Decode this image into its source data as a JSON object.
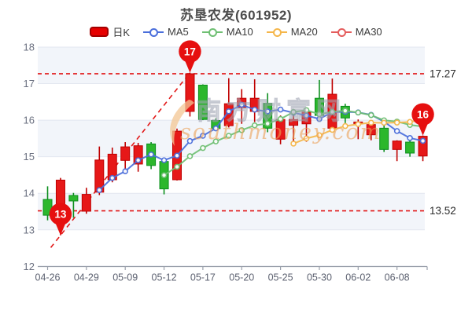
{
  "title": "苏垦农发(601952)",
  "legend": [
    {
      "label": "日K",
      "type": "candle",
      "color": "#e60000",
      "border": "#a30000"
    },
    {
      "label": "MA5",
      "type": "line",
      "color": "#4a6edb"
    },
    {
      "label": "MA10",
      "type": "line",
      "color": "#6fbf73"
    },
    {
      "label": "MA20",
      "type": "line",
      "color": "#f5b64a"
    },
    {
      "label": "MA30",
      "type": "line",
      "color": "#e45c5c"
    }
  ],
  "colors": {
    "up_fill": "#e61818",
    "up_border": "#bf0000",
    "down_fill": "#2cb72c",
    "down_border": "#0c8f1e",
    "ref_line": "#e21a1a",
    "marker_fill": "#e60f0f",
    "grid": "#e3e7f0",
    "band": "#f2f5fa",
    "axis": "#9aa0ab",
    "tick_text": "#5c6170",
    "ref_text": "#2b2b2b"
  },
  "chart_data": {
    "type": "candlestick",
    "title": "苏垦农发(601952)",
    "ylim": [
      12,
      18
    ],
    "y_ticks": [
      12,
      13,
      14,
      15,
      16,
      17,
      18
    ],
    "x_ticks": [
      {
        "label": "04-26",
        "candle": 0
      },
      {
        "label": "04-29",
        "candle": 3
      },
      {
        "label": "05-09",
        "candle": 6
      },
      {
        "label": "05-12",
        "candle": 9
      },
      {
        "label": "05-17",
        "candle": 12
      },
      {
        "label": "05-20",
        "candle": 15
      },
      {
        "label": "05-25",
        "candle": 18
      },
      {
        "label": "05-30",
        "candle": 21
      },
      {
        "label": "06-02",
        "candle": 24
      },
      {
        "label": "06-08",
        "candle": 27
      }
    ],
    "candles": [
      {
        "date": "04-26",
        "open": 13.83,
        "high": 14.19,
        "low": 13.26,
        "close": 13.4
      },
      {
        "date": "04-27",
        "open": 13.45,
        "high": 14.42,
        "low": 12.85,
        "close": 14.36
      },
      {
        "date": "04-28",
        "open": 13.94,
        "high": 14.01,
        "low": 13.33,
        "close": 13.79
      },
      {
        "date": "04-29",
        "open": 13.51,
        "high": 14.15,
        "low": 13.44,
        "close": 13.97
      },
      {
        "date": "05-05",
        "open": 14.03,
        "high": 15.28,
        "low": 13.95,
        "close": 14.91
      },
      {
        "date": "05-06",
        "open": 14.37,
        "high": 15.25,
        "low": 14.3,
        "close": 15.07
      },
      {
        "date": "05-09",
        "open": 14.9,
        "high": 15.4,
        "low": 14.55,
        "close": 15.27
      },
      {
        "date": "05-10",
        "open": 14.8,
        "high": 15.38,
        "low": 14.59,
        "close": 15.3
      },
      {
        "date": "05-11",
        "open": 15.35,
        "high": 15.4,
        "low": 14.66,
        "close": 14.76
      },
      {
        "date": "05-12",
        "open": 14.87,
        "high": 14.95,
        "low": 13.97,
        "close": 14.12
      },
      {
        "date": "05-13",
        "open": 14.37,
        "high": 15.77,
        "low": 14.35,
        "close": 15.7
      },
      {
        "date": "05-16",
        "open": 16.24,
        "high": 17.3,
        "low": 16.1,
        "close": 17.27
      },
      {
        "date": "05-17",
        "open": 16.96,
        "high": 16.98,
        "low": 16.0,
        "close": 16.02
      },
      {
        "date": "05-18",
        "open": 15.99,
        "high": 16.05,
        "low": 15.7,
        "close": 15.77
      },
      {
        "date": "05-19",
        "open": 15.85,
        "high": 17.15,
        "low": 15.8,
        "close": 16.45
      },
      {
        "date": "05-20",
        "open": 16.35,
        "high": 16.85,
        "low": 15.9,
        "close": 16.6
      },
      {
        "date": "05-23",
        "open": 16.24,
        "high": 17.12,
        "low": 15.95,
        "close": 16.6
      },
      {
        "date": "05-24",
        "open": 16.46,
        "high": 16.74,
        "low": 15.67,
        "close": 15.78
      },
      {
        "date": "05-25",
        "open": 15.48,
        "high": 16.13,
        "low": 15.34,
        "close": 16.02
      },
      {
        "date": "05-26",
        "open": 15.86,
        "high": 16.13,
        "low": 15.36,
        "close": 16.02
      },
      {
        "date": "05-27",
        "open": 15.9,
        "high": 16.3,
        "low": 15.41,
        "close": 16.22
      },
      {
        "date": "05-30",
        "open": 16.6,
        "high": 17.1,
        "low": 16.05,
        "close": 16.13
      },
      {
        "date": "05-31",
        "open": 15.78,
        "high": 17.14,
        "low": 15.75,
        "close": 16.71
      },
      {
        "date": "06-01",
        "open": 16.38,
        "high": 16.45,
        "low": 15.92,
        "close": 16.06
      },
      {
        "date": "06-02",
        "open": 15.9,
        "high": 16.02,
        "low": 15.48,
        "close": 15.95
      },
      {
        "date": "06-06",
        "open": 15.6,
        "high": 15.92,
        "low": 15.45,
        "close": 15.88
      },
      {
        "date": "06-07",
        "open": 15.78,
        "high": 16.0,
        "low": 15.13,
        "close": 15.2
      },
      {
        "date": "06-08",
        "open": 15.2,
        "high": 15.45,
        "low": 14.88,
        "close": 15.43
      },
      {
        "date": "06-09",
        "open": 15.4,
        "high": 15.52,
        "low": 15.0,
        "close": 15.1
      },
      {
        "date": "06-10",
        "open": 15.02,
        "high": 15.58,
        "low": 14.88,
        "close": 15.56
      }
    ],
    "moving_averages": [
      {
        "name": "MA5",
        "period": 5,
        "color": "#4a6edb"
      },
      {
        "name": "MA10",
        "period": 10,
        "color": "#6fbf73"
      },
      {
        "name": "MA20",
        "period": 20,
        "color": "#f5b64a"
      },
      {
        "name": "MA30",
        "period": 30,
        "color": "#e45c5c"
      }
    ],
    "ref_lines": [
      {
        "value": 17.27,
        "label": "17.27"
      },
      {
        "value": 13.52,
        "label": "13.52"
      }
    ],
    "trend_line": {
      "from_candle": 1,
      "from_value": 12.85,
      "to_candle": 11,
      "to_value": 17.3
    },
    "markers": [
      {
        "label": "13",
        "candle": 1,
        "value": 12.85
      },
      {
        "label": "17",
        "candle": 11,
        "value": 17.3
      },
      {
        "label": "16",
        "candle": 29,
        "value": 15.58
      }
    ],
    "watermark": {
      "cn": "南方财富网",
      "en": "southmoney.com"
    }
  }
}
